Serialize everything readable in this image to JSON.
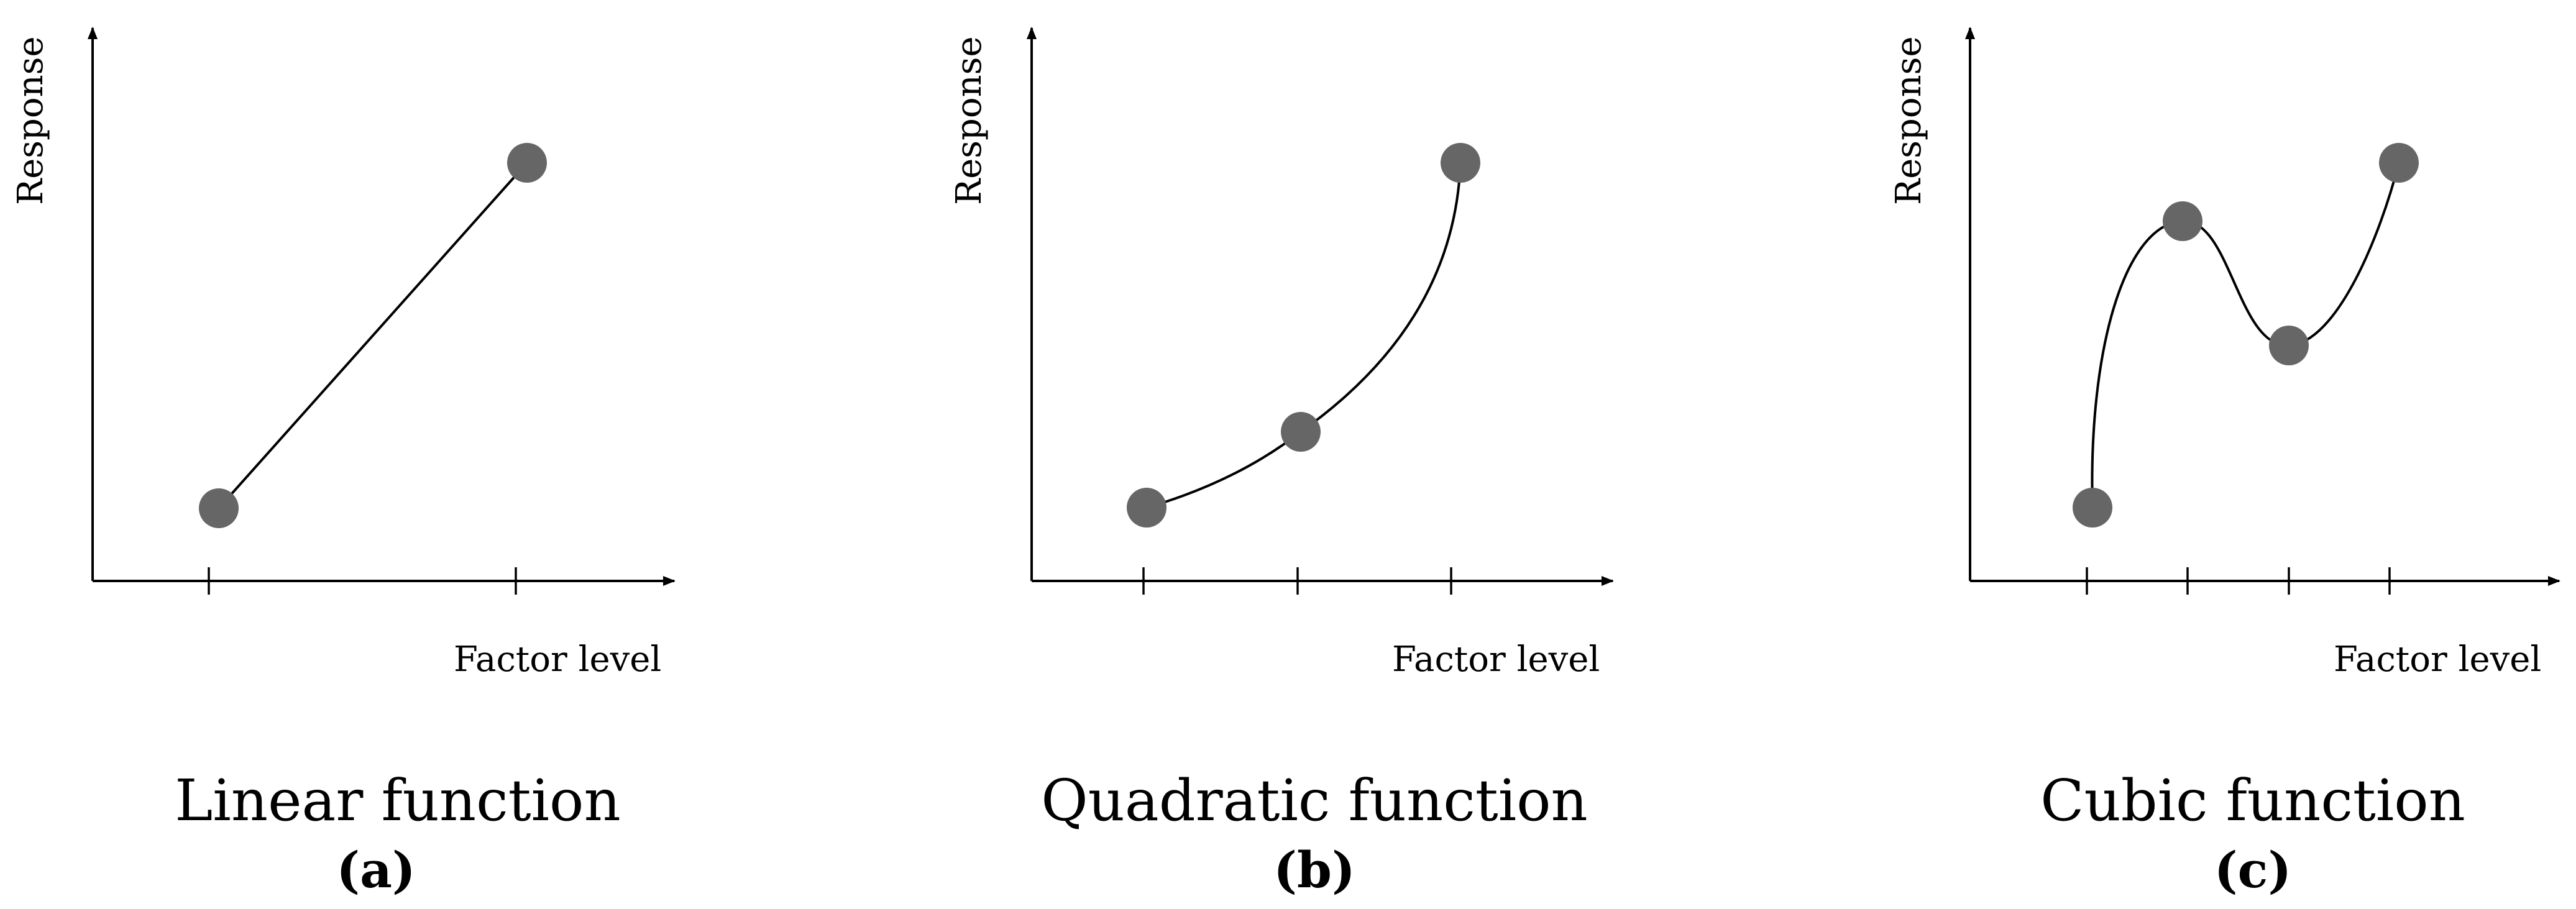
{
  "colors": {
    "point": "#666666",
    "line": "#000000",
    "background": "#ffffff"
  },
  "panels": [
    {
      "id": "a",
      "y_label": "Response",
      "x_label": "Factor level",
      "title": "Linear function",
      "letter": "(a)"
    },
    {
      "id": "b",
      "y_label": "Response",
      "x_label": "Factor level",
      "title": "Quadratic function",
      "letter": "(b)"
    },
    {
      "id": "c",
      "y_label": "Response",
      "x_label": "Factor level",
      "title": "Cubic function",
      "letter": "(c)"
    }
  ]
}
